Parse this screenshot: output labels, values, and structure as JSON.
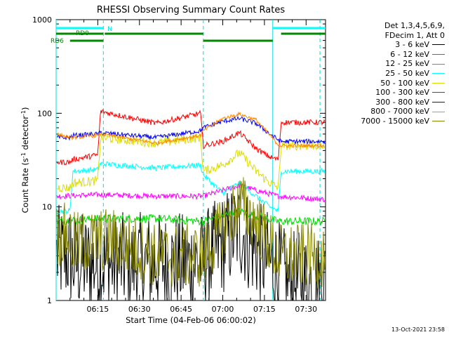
{
  "chart_data": {
    "type": "line",
    "title": "RHESSI Observing Summary Count Rates",
    "xlabel": "Start Time (04-Feb-06 06:00:02)",
    "ylabel_main": "Count Rate (s",
    "ylabel_sup1": "-1",
    "ylabel_mid": " detector",
    "ylabel_sup2": "-1",
    "ylabel_end": ")",
    "y_scale": "log",
    "ylim": [
      1,
      1000
    ],
    "x_start": "06:00",
    "x_end": "07:37",
    "x_ticks": [
      "06:15",
      "06:30",
      "06:45",
      "07:00",
      "07:15",
      "07:30"
    ],
    "y_ticks": [
      "1",
      "10",
      "100",
      "1000"
    ],
    "legend_header": [
      "Det 1,3,4,5,6,9,",
      "FDecim 1, Att 0"
    ],
    "series": [
      {
        "name": "3 - 6 keV",
        "color": "#000000",
        "x": [
          "06:00",
          "06:05",
          "06:06",
          "06:20",
          "06:36",
          "06:50",
          "06:53",
          "07:00",
          "07:06",
          "07:10",
          "07:17",
          "07:20",
          "07:23",
          "07:37"
        ],
        "values": [
          3,
          3,
          2.5,
          2.5,
          2.5,
          2.5,
          2.6,
          4,
          6,
          4,
          2.5,
          2.1,
          1.6,
          1.5
        ]
      },
      {
        "name": "6 - 12 keV",
        "color": "#ff00ff",
        "x": [
          "06:00",
          "06:16",
          "06:36",
          "06:53",
          "07:00",
          "07:06",
          "07:12",
          "07:20",
          "07:37"
        ],
        "values": [
          13,
          13.5,
          13,
          13,
          15,
          17,
          15,
          13,
          12
        ]
      },
      {
        "name": "12 - 25 keV",
        "color": "#00dd00",
        "x": [
          "06:00",
          "06:16",
          "06:36",
          "06:53",
          "07:00",
          "07:06",
          "07:12",
          "07:20",
          "07:37"
        ],
        "values": [
          7,
          7.5,
          7.5,
          7,
          8,
          9,
          8,
          7,
          7
        ]
      },
      {
        "name": "25 - 50 keV",
        "color": "#00ffff",
        "x": [
          "06:00",
          "06:05",
          "06:06",
          "06:15",
          "06:16",
          "06:36",
          "06:52",
          "06:53",
          "07:00",
          "07:06",
          "07:12",
          "07:17",
          "07:20",
          "07:21",
          "07:37"
        ],
        "values": [
          9,
          9,
          24,
          25,
          29,
          26,
          28,
          22,
          14,
          18,
          13,
          10,
          9,
          24,
          24
        ]
      },
      {
        "name": "50 - 100 keV",
        "color": "#dddd00",
        "x": [
          "06:00",
          "06:05",
          "06:06",
          "06:15",
          "06:16",
          "06:36",
          "06:52",
          "06:53",
          "07:00",
          "07:06",
          "07:12",
          "07:17",
          "07:20",
          "07:21",
          "07:37"
        ],
        "values": [
          16,
          16,
          18,
          19,
          55,
          48,
          55,
          24,
          28,
          38,
          24,
          18,
          16,
          45,
          45
        ]
      },
      {
        "name": "100 - 300 keV",
        "color": "#ff0000",
        "x": [
          "06:00",
          "06:05",
          "06:06",
          "06:15",
          "06:16",
          "06:36",
          "06:52",
          "06:53",
          "07:00",
          "07:06",
          "07:12",
          "07:17",
          "07:20",
          "07:21",
          "07:37"
        ],
        "values": [
          30,
          30,
          32,
          36,
          105,
          78,
          100,
          45,
          50,
          62,
          42,
          34,
          32,
          80,
          80
        ]
      },
      {
        "name": "300 - 800 keV",
        "color": "#0000ff",
        "x": [
          "06:00",
          "06:05",
          "06:06",
          "06:15",
          "06:16",
          "06:36",
          "06:52",
          "06:53",
          "07:00",
          "07:06",
          "07:12",
          "07:17",
          "07:20",
          "07:21",
          "07:37"
        ],
        "values": [
          55,
          55,
          58,
          60,
          62,
          55,
          65,
          70,
          82,
          88,
          78,
          60,
          52,
          50,
          50
        ]
      },
      {
        "name": "800 - 7000 keV",
        "color": "#ff8800",
        "x": [
          "06:00",
          "06:05",
          "06:06",
          "06:15",
          "06:16",
          "06:36",
          "06:52",
          "06:53",
          "07:00",
          "07:06",
          "07:12",
          "07:17",
          "07:20",
          "07:21",
          "07:37"
        ],
        "values": [
          60,
          55,
          55,
          58,
          60,
          48,
          58,
          65,
          88,
          98,
          85,
          58,
          46,
          45,
          45
        ]
      },
      {
        "name": "7000 - 15000 keV",
        "color": "#888800",
        "x": [
          "06:00",
          "06:05",
          "06:06",
          "06:20",
          "06:36",
          "06:50",
          "06:53",
          "07:00",
          "07:06",
          "07:12",
          "07:17",
          "07:20",
          "07:23",
          "07:37"
        ],
        "values": [
          5,
          5,
          4,
          4.5,
          3,
          3,
          3,
          6,
          11,
          7,
          4,
          3,
          3,
          3
        ]
      }
    ],
    "annotations": {
      "top_bar_labels": [
        "N",
        "RD0",
        "RD6"
      ],
      "vertical_markers": [
        "06:00",
        "06:17",
        "06:53",
        "07:18",
        "07:35"
      ]
    },
    "legend_placement": "top-right"
  },
  "footer": {
    "timestamp": "13-Oct-2021 23:58"
  }
}
